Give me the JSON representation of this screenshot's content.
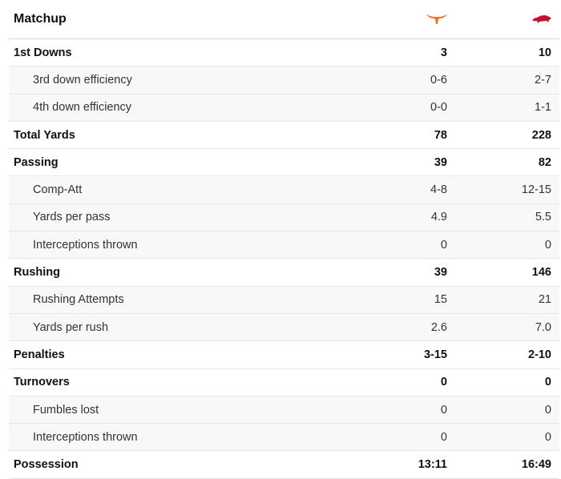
{
  "header": {
    "title": "Matchup",
    "team1_logo": "texas-longhorn-icon",
    "team2_logo": "arkansas-razorback-icon",
    "team1_color": "#e8762c",
    "team2_color": "#c8102e"
  },
  "rows": [
    {
      "label": "1st Downs",
      "t1": "3",
      "t2": "10",
      "type": "main"
    },
    {
      "label": "3rd down efficiency",
      "t1": "0-6",
      "t2": "2-7",
      "type": "sub"
    },
    {
      "label": "4th down efficiency",
      "t1": "0-0",
      "t2": "1-1",
      "type": "sub"
    },
    {
      "label": "Total Yards",
      "t1": "78",
      "t2": "228",
      "type": "main"
    },
    {
      "label": "Passing",
      "t1": "39",
      "t2": "82",
      "type": "main"
    },
    {
      "label": "Comp-Att",
      "t1": "4-8",
      "t2": "12-15",
      "type": "sub"
    },
    {
      "label": "Yards per pass",
      "t1": "4.9",
      "t2": "5.5",
      "type": "sub"
    },
    {
      "label": "Interceptions thrown",
      "t1": "0",
      "t2": "0",
      "type": "sub"
    },
    {
      "label": "Rushing",
      "t1": "39",
      "t2": "146",
      "type": "main"
    },
    {
      "label": "Rushing Attempts",
      "t1": "15",
      "t2": "21",
      "type": "sub"
    },
    {
      "label": "Yards per rush",
      "t1": "2.6",
      "t2": "7.0",
      "type": "sub"
    },
    {
      "label": "Penalties",
      "t1": "3-15",
      "t2": "2-10",
      "type": "main"
    },
    {
      "label": "Turnovers",
      "t1": "0",
      "t2": "0",
      "type": "main"
    },
    {
      "label": "Fumbles lost",
      "t1": "0",
      "t2": "0",
      "type": "sub"
    },
    {
      "label": "Interceptions thrown",
      "t1": "0",
      "t2": "0",
      "type": "sub"
    },
    {
      "label": "Possession",
      "t1": "13:11",
      "t2": "16:49",
      "type": "main"
    }
  ]
}
